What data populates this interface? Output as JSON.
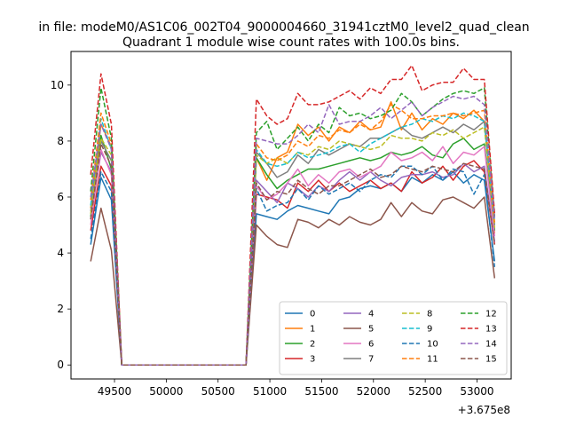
{
  "figure": {
    "suptitle": "in file: modeM0/AS1C06_002T04_9000004660_31941cztM0_level2_quad_clean",
    "title": "Quadrant 1 module wise count rates with 100.0s bins.",
    "x_offset_label": "+3.675e8"
  },
  "chart_data": {
    "type": "line",
    "title": "Quadrant 1 module wise count rates with 100.0s bins.",
    "xlabel": "",
    "ylabel": "",
    "x_offset": 367500000,
    "xlim": [
      49080,
      53330
    ],
    "ylim": [
      -0.5,
      11.2
    ],
    "xticks": [
      49500,
      50000,
      50500,
      51000,
      51500,
      52000,
      52500,
      53000
    ],
    "yticks": [
      0,
      2,
      4,
      6,
      8,
      10
    ],
    "grid": false,
    "legend_placement": "lower-right",
    "legend_columns": 4,
    "x": [
      49270,
      49370,
      49470,
      49570,
      50670,
      50770,
      50870,
      50970,
      51070,
      51170,
      51270,
      51370,
      51470,
      51570,
      51670,
      51770,
      51870,
      51970,
      52070,
      52170,
      52270,
      52370,
      52470,
      52570,
      52670,
      52770,
      52870,
      52970,
      53070,
      53170
    ],
    "series": [
      {
        "name": "0",
        "color": "#1f77b4",
        "dash": "solid",
        "values": [
          4.3,
          6.7,
          5.9,
          0,
          0,
          0,
          5.4,
          5.3,
          5.2,
          5.5,
          5.7,
          5.6,
          5.5,
          5.4,
          5.9,
          6.0,
          6.3,
          6.4,
          6.3,
          6.5,
          6.2,
          6.7,
          6.5,
          6.8,
          6.6,
          6.9,
          6.5,
          6.8,
          6.6,
          3.7
        ]
      },
      {
        "name": "1",
        "color": "#ff7f0e",
        "dash": "solid",
        "values": [
          5.6,
          8.6,
          7.8,
          0,
          0,
          0,
          7.4,
          6.6,
          7.4,
          7.6,
          8.6,
          8.2,
          8.5,
          8.0,
          8.5,
          8.3,
          8.7,
          8.4,
          8.5,
          9.4,
          8.4,
          9.0,
          8.4,
          8.8,
          8.6,
          9.0,
          8.8,
          9.1,
          8.7,
          4.7
        ]
      },
      {
        "name": "2",
        "color": "#2ca02c",
        "dash": "solid",
        "values": [
          5.3,
          8.2,
          7.0,
          0,
          0,
          0,
          7.4,
          6.8,
          6.3,
          6.6,
          6.8,
          7.0,
          7.0,
          7.1,
          7.2,
          7.3,
          7.4,
          7.3,
          7.4,
          7.6,
          7.5,
          7.6,
          7.8,
          7.5,
          7.4,
          7.9,
          8.1,
          7.7,
          7.9,
          4.8
        ]
      },
      {
        "name": "3",
        "color": "#d62728",
        "dash": "solid",
        "values": [
          4.8,
          7.1,
          6.4,
          0,
          0,
          0,
          6.1,
          6.0,
          5.9,
          5.6,
          6.5,
          6.2,
          6.6,
          6.2,
          6.5,
          6.2,
          6.4,
          6.6,
          6.3,
          6.5,
          6.2,
          6.9,
          6.5,
          6.7,
          7.1,
          6.6,
          7.1,
          7.3,
          6.9,
          4.3
        ]
      },
      {
        "name": "4",
        "color": "#9467bd",
        "dash": "solid",
        "values": [
          5.2,
          7.6,
          6.9,
          0,
          0,
          0,
          6.6,
          6.2,
          5.8,
          6.5,
          6.3,
          6.0,
          6.4,
          6.2,
          6.6,
          6.9,
          6.6,
          6.9,
          6.6,
          6.4,
          6.7,
          6.8,
          6.8,
          6.9,
          6.7,
          6.8,
          7.2,
          6.9,
          7.1,
          4.4
        ]
      },
      {
        "name": "5",
        "color": "#8c564b",
        "dash": "solid",
        "values": [
          3.7,
          5.6,
          4.1,
          0,
          0,
          0,
          5.0,
          4.6,
          4.3,
          4.2,
          5.2,
          5.1,
          4.9,
          5.2,
          5.0,
          5.3,
          5.1,
          5.0,
          5.2,
          5.8,
          5.3,
          5.8,
          5.5,
          5.4,
          5.9,
          6.0,
          5.8,
          5.6,
          6.0,
          3.1
        ]
      },
      {
        "name": "6",
        "color": "#e377c2",
        "dash": "solid",
        "values": [
          5.0,
          7.7,
          6.8,
          0,
          0,
          0,
          6.4,
          5.9,
          6.1,
          6.5,
          7.0,
          6.4,
          6.8,
          6.5,
          6.9,
          7.0,
          6.7,
          6.9,
          7.1,
          7.6,
          7.3,
          7.4,
          7.6,
          7.3,
          7.8,
          7.2,
          7.6,
          7.5,
          7.8,
          4.6
        ]
      },
      {
        "name": "7",
        "color": "#7f7f7f",
        "dash": "solid",
        "values": [
          5.5,
          8.0,
          7.3,
          0,
          0,
          0,
          7.6,
          7.2,
          6.7,
          6.9,
          7.5,
          7.2,
          7.7,
          7.5,
          7.7,
          7.9,
          7.8,
          8.1,
          8.1,
          8.3,
          8.5,
          8.2,
          8.1,
          8.3,
          8.5,
          8.3,
          8.6,
          8.4,
          8.7,
          5.0
        ]
      },
      {
        "name": "8",
        "color": "#bcbd22",
        "dash": "dashed",
        "values": [
          5.4,
          8.1,
          7.5,
          0,
          0,
          0,
          7.5,
          7.2,
          7.4,
          7.2,
          7.6,
          7.5,
          7.8,
          7.7,
          8.0,
          7.9,
          7.8,
          7.7,
          7.8,
          8.2,
          8.1,
          8.1,
          8.0,
          8.3,
          8.2,
          8.4,
          8.1,
          8.3,
          8.5,
          4.9
        ]
      },
      {
        "name": "9",
        "color": "#17becf",
        "dash": "dashed",
        "values": [
          5.7,
          8.8,
          7.7,
          0,
          0,
          0,
          7.7,
          7.2,
          7.1,
          7.2,
          7.6,
          7.4,
          7.5,
          7.6,
          7.8,
          7.9,
          7.6,
          7.9,
          8.1,
          8.3,
          8.5,
          8.6,
          8.8,
          8.7,
          8.9,
          8.8,
          9.0,
          8.9,
          8.7,
          5.1
        ]
      },
      {
        "name": "10",
        "color": "#1f77b4",
        "dash": "dashed",
        "values": [
          4.5,
          6.9,
          6.2,
          0,
          0,
          0,
          6.3,
          5.5,
          5.7,
          5.8,
          6.3,
          5.9,
          6.4,
          6.1,
          6.3,
          6.5,
          6.2,
          6.6,
          6.8,
          6.7,
          7.1,
          7.1,
          6.8,
          7.1,
          6.6,
          7.0,
          6.9,
          6.1,
          6.8,
          3.5
        ]
      },
      {
        "name": "11",
        "color": "#ff7f0e",
        "dash": "dashed",
        "values": [
          5.9,
          9.0,
          7.9,
          0,
          0,
          0,
          7.9,
          7.4,
          7.3,
          7.5,
          8.0,
          7.8,
          8.2,
          8.1,
          8.4,
          8.3,
          8.6,
          8.4,
          8.7,
          9.3,
          9.1,
          8.8,
          8.8,
          8.9,
          8.9,
          9.0,
          8.9,
          9.0,
          9.1,
          5.1
        ]
      },
      {
        "name": "12",
        "color": "#2ca02c",
        "dash": "dashed",
        "values": [
          6.2,
          9.9,
          8.1,
          0,
          0,
          0,
          8.3,
          8.7,
          7.7,
          8.1,
          8.5,
          8.0,
          8.6,
          8.3,
          9.2,
          8.9,
          9.0,
          8.8,
          8.9,
          9.1,
          9.7,
          9.4,
          8.9,
          9.2,
          9.5,
          9.7,
          9.8,
          9.7,
          9.9,
          5.3
        ]
      },
      {
        "name": "13",
        "color": "#d62728",
        "dash": "dashed",
        "values": [
          6.8,
          10.4,
          8.6,
          0,
          0,
          0,
          9.5,
          8.9,
          8.6,
          8.8,
          9.7,
          9.3,
          9.3,
          9.4,
          9.6,
          9.8,
          9.5,
          9.9,
          9.7,
          10.2,
          10.2,
          10.7,
          9.8,
          10.0,
          10.1,
          10.1,
          10.6,
          10.2,
          10.2,
          5.4
        ]
      },
      {
        "name": "14",
        "color": "#9467bd",
        "dash": "dashed",
        "values": [
          6.0,
          8.6,
          7.7,
          0,
          0,
          0,
          8.1,
          8.0,
          7.9,
          7.9,
          8.2,
          8.6,
          8.3,
          9.3,
          8.6,
          8.7,
          8.7,
          8.9,
          9.2,
          8.8,
          9.1,
          9.4,
          8.9,
          9.2,
          9.4,
          9.6,
          9.5,
          9.6,
          9.3,
          5.2
        ]
      },
      {
        "name": "15",
        "color": "#8c564b",
        "dash": "dashed",
        "values": [
          5.2,
          7.9,
          7.1,
          0,
          0,
          0,
          6.5,
          5.9,
          6.2,
          6.1,
          6.6,
          6.3,
          6.1,
          6.4,
          6.4,
          6.6,
          6.8,
          7.0,
          6.7,
          6.8,
          7.1,
          7.0,
          6.9,
          7.1,
          7.0,
          6.9,
          7.2,
          7.1,
          7.0,
          4.3
        ]
      }
    ]
  }
}
